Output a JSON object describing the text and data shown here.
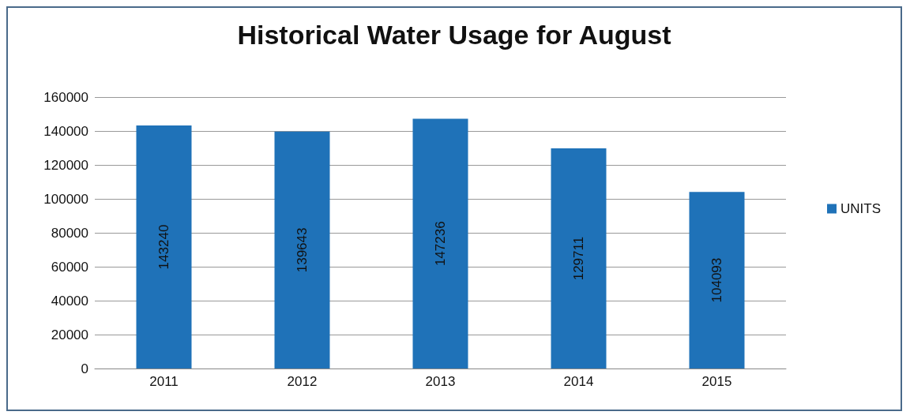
{
  "chart_data": {
    "type": "bar",
    "title": "Historical Water Usage for August",
    "categories": [
      "2011",
      "2012",
      "2013",
      "2014",
      "2015"
    ],
    "series": [
      {
        "name": "UNITS",
        "color": "#1f72b8",
        "values": [
          143240,
          139643,
          147236,
          129711,
          104093
        ]
      }
    ],
    "ylim": [
      0,
      160000
    ],
    "yticks": [
      0,
      20000,
      40000,
      60000,
      80000,
      100000,
      120000,
      140000,
      160000
    ],
    "grid": "y",
    "legend": "right",
    "data_labels": true
  }
}
